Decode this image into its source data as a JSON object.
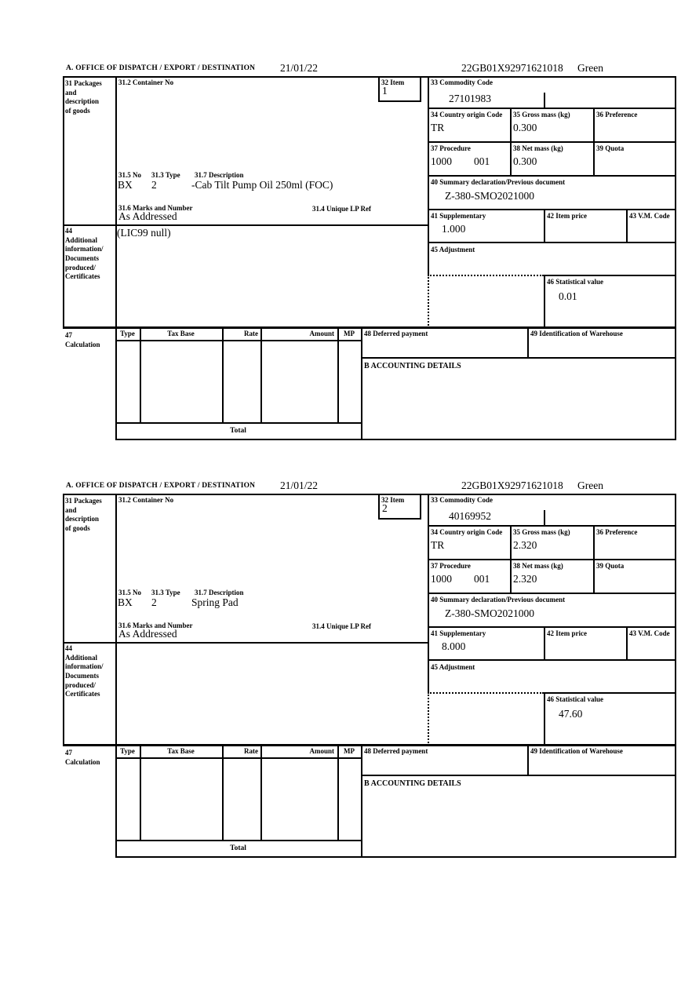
{
  "header": {
    "office_label": "A. OFFICE OF DISPATCH / EXPORT / DESTINATION",
    "date": "21/01/22",
    "reference": "22GB01X92971621018",
    "status": "Green"
  },
  "labels": {
    "box31": "31 Packages\nand\ndescription\nof goods",
    "box31_2": "31.2 Container No",
    "box32": "32 Item",
    "box33": "33 Commodity Code",
    "box34": "34 Country origin Code",
    "box35": "35 Gross mass (kg)",
    "box36": "36 Preference",
    "box37": "37 Procedure",
    "box38": "38 Net mass (kg)",
    "box39": "39 Quota",
    "box31_5": "31.5 No",
    "box31_3": "31.3 Type",
    "box31_7": "31.7 Description",
    "box31_6": "31.6 Marks and Number",
    "box31_4": "31.4 Unique LP Ref",
    "box40": "40 Summary declaration/Previous document",
    "box41": "41 Supplementary",
    "box42": "42 Item price",
    "box43": "43 V.M. Code",
    "box44": "44\nAdditional\ninformation/\nDocuments\nproduced/\nCertificates",
    "box45": "45 Adjustment",
    "box46": "46 Statistical value",
    "box47": "47\nCalculation",
    "box48": "48 Deferred payment",
    "box49": "49 Identification of Warehouse",
    "accounting": "B ACCOUNTING DETAILS",
    "total": "Total"
  },
  "table": {
    "headers": [
      "Type",
      "Tax Base",
      "Rate",
      "Amount",
      "MP"
    ]
  },
  "items": [
    {
      "item_no": "1",
      "container_no": "",
      "commodity_code": "27101983",
      "origin_code": "TR",
      "gross_mass": "0.300",
      "procedure": "1000",
      "procedure_suffix": "001",
      "net_mass": "0.300",
      "package_no": "BX",
      "package_type": "2",
      "description": "-Cab Tilt Pump Oil 250ml (FOC)",
      "marks": "As Addressed",
      "previous_document": "Z-380-SMO2021000",
      "supplementary": "1.000",
      "additional_info": "(LIC99 null)",
      "statistical_value": "0.01"
    },
    {
      "item_no": "2",
      "container_no": "",
      "commodity_code": "40169952",
      "origin_code": "TR",
      "gross_mass": "2.320",
      "procedure": "1000",
      "procedure_suffix": "001",
      "net_mass": "2.320",
      "package_no": "BX",
      "package_type": "2",
      "description": "Spring Pad",
      "marks": "As Addressed",
      "previous_document": "Z-380-SMO2021000",
      "supplementary": "8.000",
      "additional_info": "",
      "statistical_value": "47.60"
    }
  ]
}
